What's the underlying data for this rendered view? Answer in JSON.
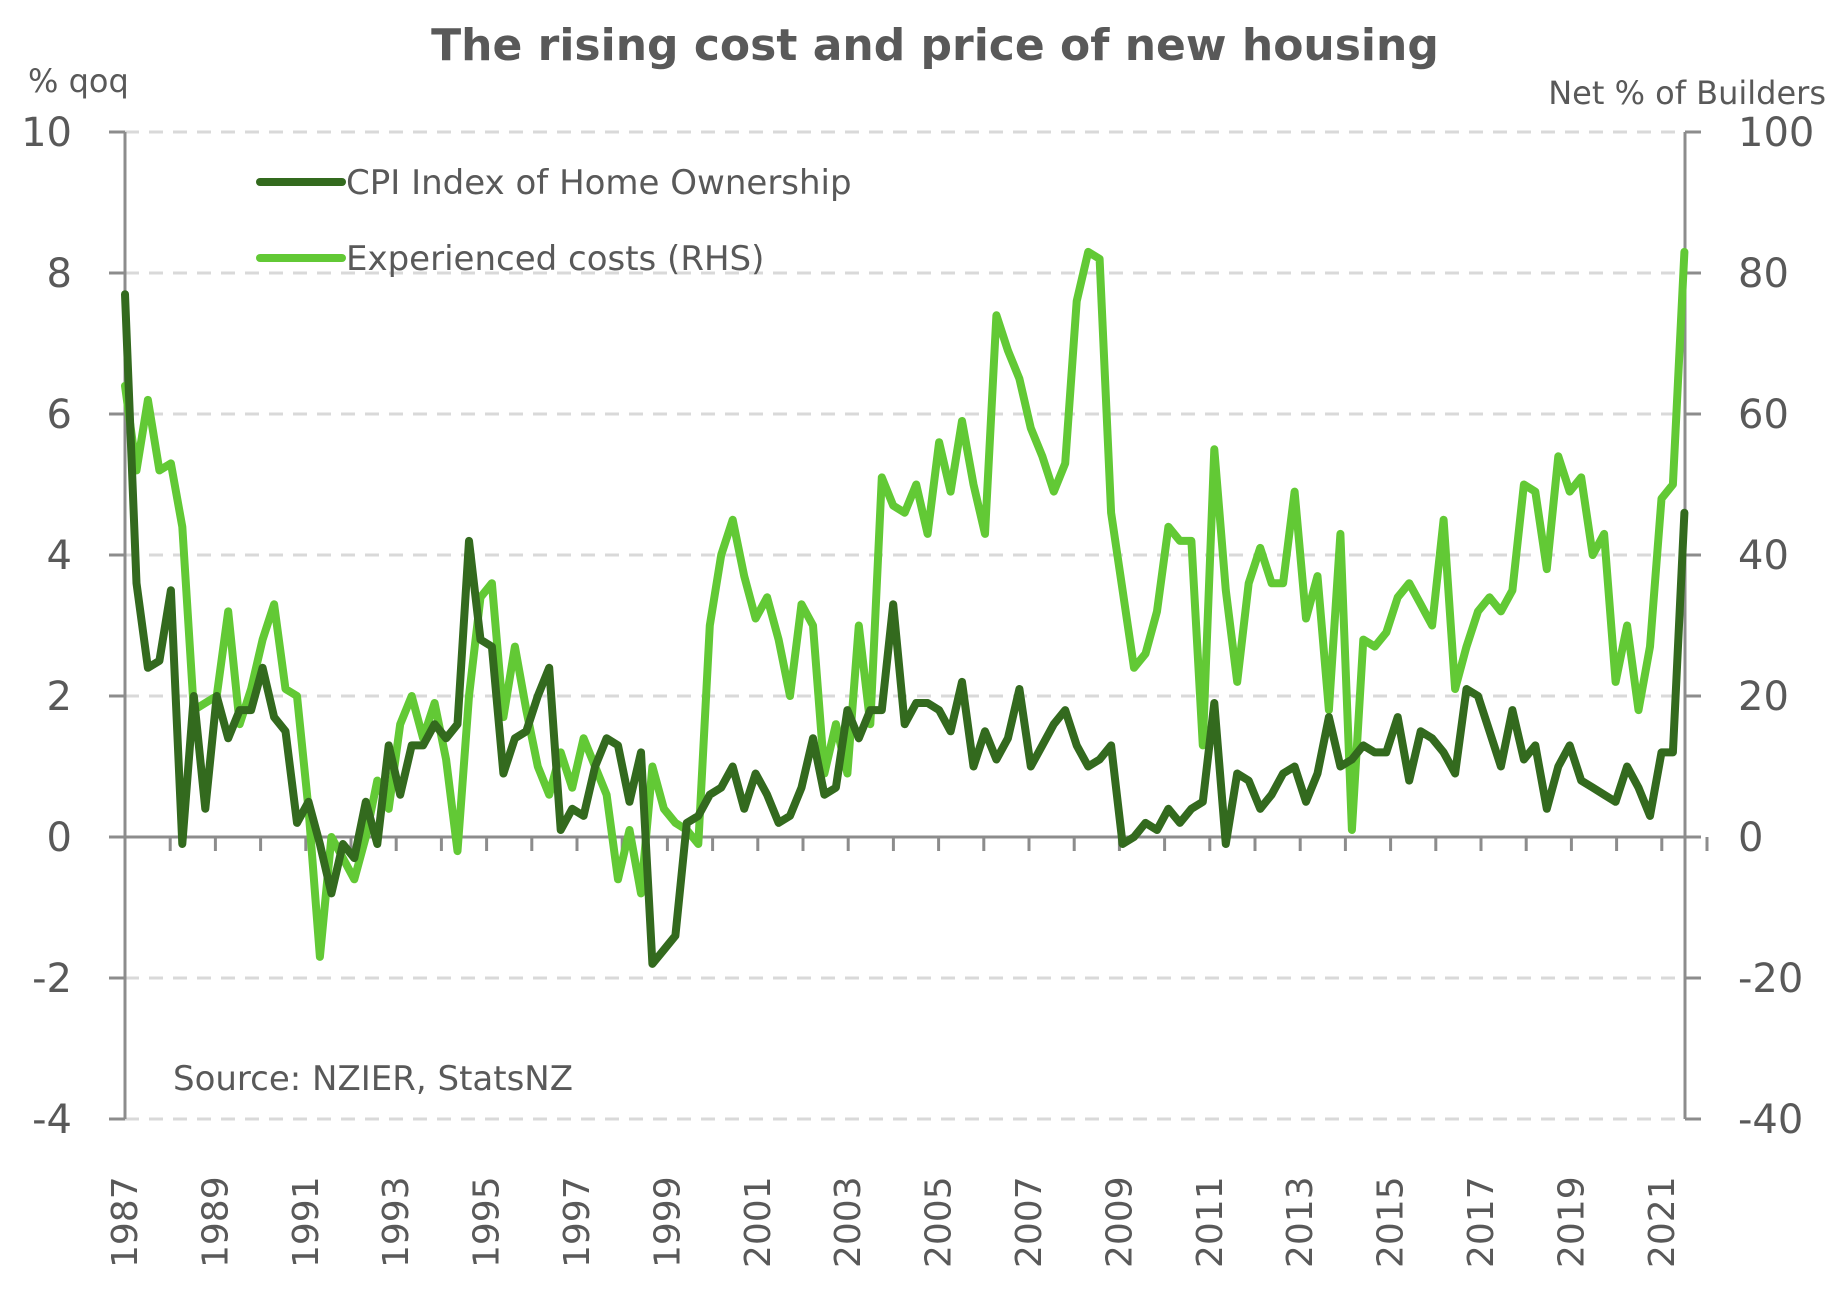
{
  "chart_data": {
    "type": "line",
    "title": "The rising cost and price of new housing",
    "left_axis": {
      "label": "% qoq",
      "min": -4,
      "max": 10,
      "ticks": [
        10,
        8,
        6,
        4,
        2,
        0,
        -2,
        -4
      ],
      "tick_labels": [
        "10",
        "8",
        "6",
        "4",
        "2",
        "0",
        "-2",
        "-4"
      ]
    },
    "right_axis": {
      "label": "Net % of Builders",
      "min": -40,
      "max": 100,
      "ticks": [
        100,
        80,
        60,
        40,
        20,
        0,
        -20,
        -40
      ],
      "tick_labels": [
        "100",
        "80",
        "60",
        "40",
        "20",
        "0",
        "-20",
        "-40"
      ]
    },
    "x_axis": {
      "start": 1987.0,
      "end": 2021.5,
      "tick_labels": [
        "1987",
        "1989",
        "1991",
        "1993",
        "1995",
        "1997",
        "1999",
        "2001",
        "2003",
        "2005",
        "2007",
        "2009",
        "2011",
        "2013",
        "2015",
        "2017",
        "2019",
        "2021"
      ],
      "frequency": "quarterly"
    },
    "grid": "horizontal-dashed",
    "legend_position": "top-left",
    "source": "Source: NZIER, StatsNZ",
    "series": [
      {
        "name": "CPI Index of Home Ownership",
        "axis": "left",
        "color": "#336a1e",
        "values": [
          7.7,
          3.6,
          2.4,
          2.5,
          3.5,
          -0.1,
          2.0,
          0.4,
          2.0,
          1.4,
          1.8,
          1.8,
          2.4,
          1.7,
          1.5,
          0.2,
          0.5,
          -0.1,
          -0.8,
          -0.1,
          -0.3,
          0.5,
          -0.1,
          1.3,
          0.6,
          1.3,
          1.3,
          1.6,
          1.4,
          1.6,
          4.2,
          2.8,
          2.7,
          0.9,
          1.4,
          1.5,
          2.0,
          2.4,
          0.1,
          0.4,
          0.3,
          1.0,
          1.4,
          1.3,
          0.5,
          1.2,
          -1.8,
          -1.6,
          -1.4,
          0.2,
          0.3,
          0.6,
          0.7,
          1.0,
          0.4,
          0.9,
          0.6,
          0.2,
          0.3,
          0.7,
          1.4,
          0.6,
          0.7,
          1.8,
          1.4,
          1.8,
          1.8,
          3.3,
          1.6,
          1.9,
          1.9,
          1.8,
          1.5,
          2.2,
          1.0,
          1.5,
          1.1,
          1.4,
          2.1,
          1.0,
          1.3,
          1.6,
          1.8,
          1.3,
          1.0,
          1.1,
          1.3,
          -0.1,
          0.0,
          0.2,
          0.1,
          0.4,
          0.2,
          0.4,
          0.5,
          1.9,
          -0.1,
          0.9,
          0.8,
          0.4,
          0.6,
          0.9,
          1.0,
          0.5,
          0.9,
          1.7,
          1.0,
          1.1,
          1.3,
          1.2,
          1.2,
          1.7,
          0.8,
          1.5,
          1.4,
          1.2,
          0.9,
          2.1,
          2.0,
          1.5,
          1.0,
          1.8,
          1.1,
          1.3,
          0.4,
          1.0,
          1.3,
          0.8,
          0.7,
          0.6,
          0.5,
          1.0,
          0.7,
          0.3,
          1.2,
          1.2,
          4.6
        ]
      },
      {
        "name": "Experienced costs (RHS)",
        "axis": "right",
        "color": "#62c935",
        "values": [
          64,
          52,
          62,
          52,
          53,
          44,
          18,
          19,
          20,
          32,
          16,
          21,
          28,
          33,
          21,
          20,
          4,
          -17,
          0,
          -3,
          -6,
          0,
          8,
          4,
          16,
          20,
          14,
          19,
          11,
          -2,
          20,
          34,
          36,
          17,
          27,
          18,
          10,
          6,
          12,
          7,
          14,
          10,
          6,
          -6,
          1,
          -8,
          10,
          4,
          2,
          1,
          -1,
          30,
          40,
          45,
          37,
          31,
          34,
          28,
          20,
          33,
          30,
          9,
          16,
          9,
          30,
          16,
          51,
          47,
          46,
          50,
          43,
          56,
          49,
          59,
          50,
          43,
          74,
          69,
          65,
          58,
          54,
          49,
          53,
          76,
          83,
          82,
          46,
          35,
          24,
          26,
          32,
          44,
          42,
          42,
          13,
          55,
          35,
          22,
          36,
          41,
          36,
          36,
          49,
          31,
          37,
          18,
          43,
          1,
          28,
          27,
          29,
          34,
          36,
          33,
          30,
          45,
          21,
          27,
          32,
          34,
          32,
          35,
          50,
          49,
          38,
          54,
          49,
          51,
          40,
          43,
          22,
          30,
          18,
          27,
          48,
          50,
          83
        ]
      }
    ]
  },
  "legend": [
    {
      "label": "CPI Index of Home Ownership",
      "color": "#336a1e"
    },
    {
      "label": "Experienced costs (RHS)",
      "color": "#62c935"
    }
  ]
}
